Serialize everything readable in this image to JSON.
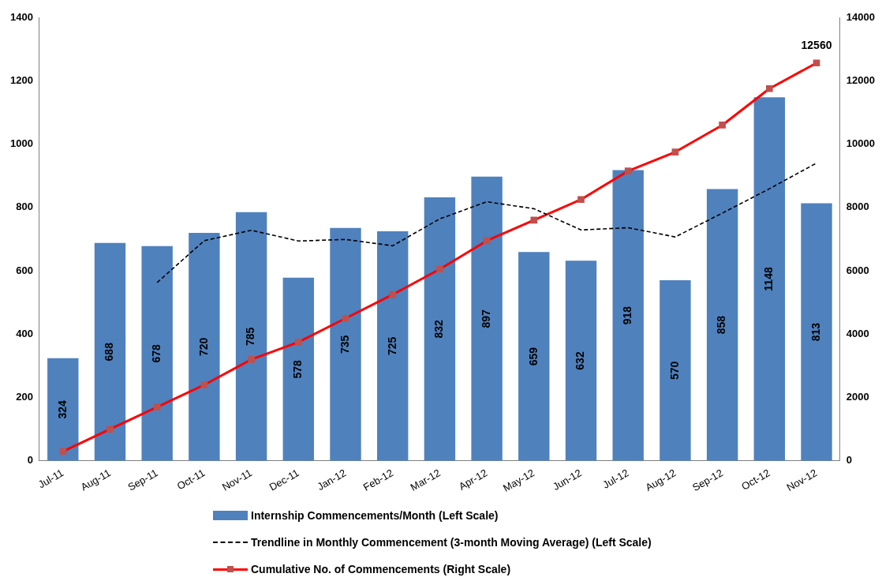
{
  "chart_data": {
    "type": "bar",
    "categories": [
      "Jul-11",
      "Aug-11",
      "Sep-11",
      "Oct-11",
      "Nov-11",
      "Dec-11",
      "Jan-12",
      "Feb-12",
      "Mar-12",
      "Apr-12",
      "May-12",
      "Jun-12",
      "Jul-12",
      "Aug-12",
      "Sep-12",
      "Oct-12",
      "Nov-12"
    ],
    "series": [
      {
        "name": "Internship Commencements/Month (Left Scale)",
        "color": "#4f81bd",
        "values": [
          324,
          688,
          678,
          720,
          785,
          578,
          735,
          725,
          832,
          897,
          659,
          632,
          918,
          570,
          858,
          1148,
          813
        ],
        "value_labels": [
          "324",
          "688",
          "678",
          "720",
          "785",
          "578",
          "735",
          "725",
          "832",
          "897",
          "659",
          "632",
          "918",
          "570",
          "858",
          "1148",
          "813"
        ]
      },
      {
        "name": "Trendline in Monthly Commencement (3-month Moving Average) (Left Scale)",
        "type": "line",
        "color": "#000000",
        "line_style": "dashed",
        "marker": "none",
        "values": [
          null,
          null,
          563,
          695,
          728,
          694,
          699,
          679,
          764,
          818,
          796,
          729,
          736,
          707,
          782,
          859,
          940
        ]
      },
      {
        "name": "Cumulative No. of Commencements (Right Scale)",
        "type": "line",
        "axis": "y2",
        "color": "#ff0000",
        "line_style": "solid",
        "marker": "square",
        "values": [
          300,
          1000,
          1700,
          2400,
          3200,
          3750,
          4500,
          5250,
          6050,
          6950,
          7600,
          8250,
          9150,
          9750,
          10600,
          11750,
          12560
        ],
        "value_labels": [
          null,
          null,
          null,
          null,
          null,
          null,
          null,
          null,
          null,
          null,
          null,
          null,
          null,
          null,
          null,
          null,
          "12560"
        ]
      }
    ],
    "ylim": [
      0,
      1400
    ],
    "yticks": [
      0,
      200,
      400,
      600,
      800,
      1000,
      1200,
      1400
    ],
    "y2lim": [
      0,
      14000
    ],
    "y2ticks": [
      0,
      2000,
      4000,
      6000,
      8000,
      10000,
      12000,
      14000
    ],
    "grid": false,
    "legend": "bottom"
  }
}
